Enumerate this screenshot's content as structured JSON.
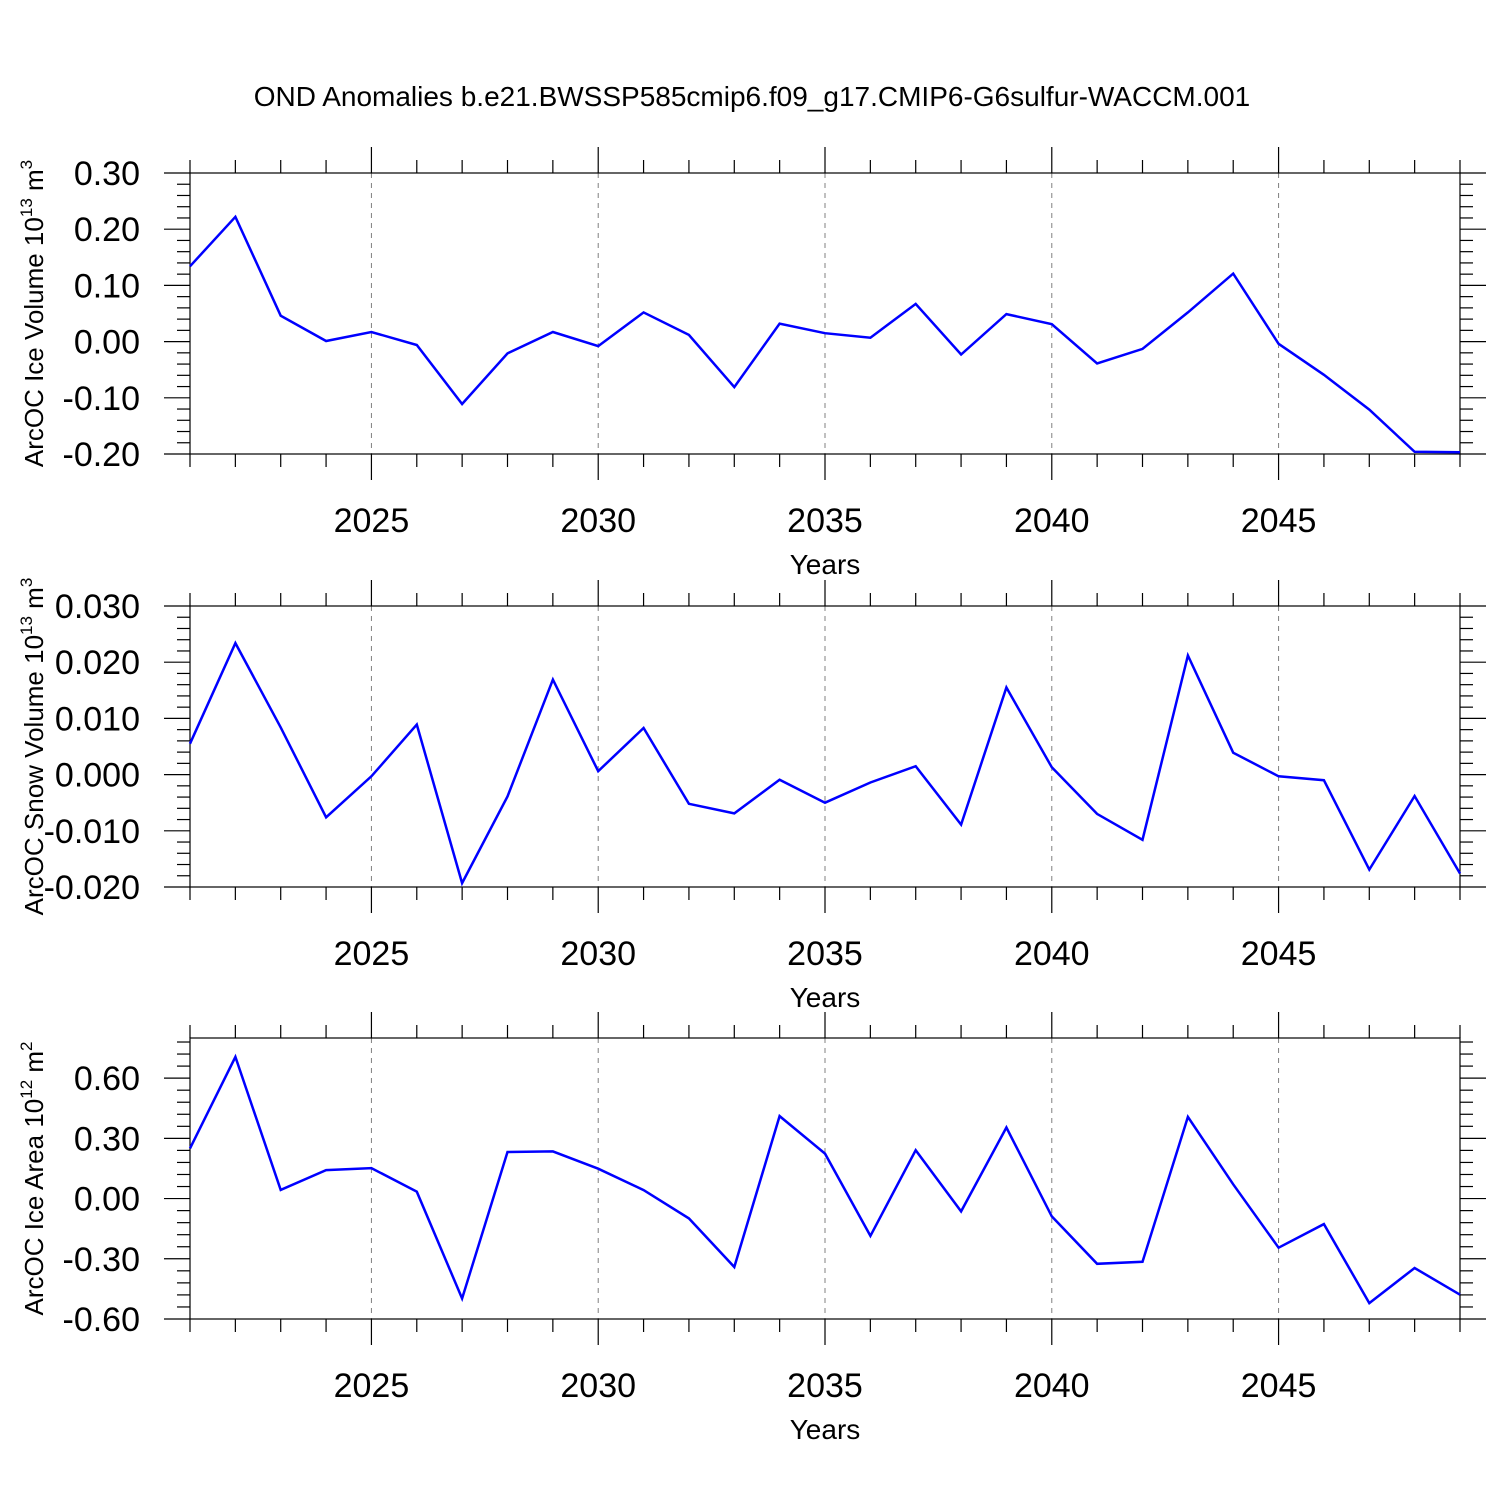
{
  "title": "OND Anomalies b.e21.BWSSP585cmip6.f09_g17.CMIP6-G6sulfur-WACCM.001",
  "colors": {
    "line": "#0000ff",
    "axis": "#000000",
    "grid": "#808080"
  },
  "chart_data": [
    {
      "type": "line",
      "ylabel": "ArcOC Ice Volume 10",
      "ylabel_exp": "13",
      "ylabel_unit": " m",
      "ylabel_unit_exp": "3",
      "xlabel": "Years",
      "xlim": [
        2021,
        2049
      ],
      "ylim": [
        -0.2,
        0.3
      ],
      "yticks": [
        -0.2,
        -0.1,
        0.0,
        0.1,
        0.2,
        0.3
      ],
      "ytick_labels": [
        "-0.20",
        "-0.10",
        "0.00",
        "0.10",
        "0.20",
        "0.30"
      ],
      "xticks": [
        2025,
        2030,
        2035,
        2040,
        2045
      ],
      "xtick_labels": [
        "2025",
        "2030",
        "2035",
        "2040",
        "2045"
      ],
      "grid": "vertical dashed at major x ticks",
      "series": [
        {
          "x": [
            2021,
            2022,
            2023,
            2024,
            2025,
            2026,
            2027,
            2028,
            2029,
            2030,
            2031,
            2032,
            2033,
            2034,
            2035,
            2036,
            2037,
            2038,
            2039,
            2040,
            2041,
            2042,
            2043,
            2044,
            2045,
            2046,
            2047,
            2048,
            2049
          ],
          "values": [
            0.134,
            0.222,
            0.046,
            0.001,
            0.017,
            -0.006,
            -0.111,
            -0.021,
            0.017,
            -0.008,
            0.052,
            0.012,
            -0.081,
            0.032,
            0.015,
            0.007,
            0.067,
            -0.023,
            0.049,
            0.031,
            -0.039,
            -0.013,
            0.052,
            0.121,
            -0.004,
            -0.059,
            -0.121,
            -0.196,
            -0.197
          ]
        }
      ]
    },
    {
      "type": "line",
      "ylabel": "ArcOC Snow Volume 10",
      "ylabel_exp": "13",
      "ylabel_unit": " m",
      "ylabel_unit_exp": "3",
      "xlabel": "Years",
      "xlim": [
        2021,
        2049
      ],
      "ylim": [
        -0.02,
        0.03
      ],
      "yticks": [
        -0.02,
        -0.01,
        0.0,
        0.01,
        0.02,
        0.03
      ],
      "ytick_labels": [
        "-0.020",
        "-0.010",
        "0.000",
        "0.010",
        "0.020",
        "0.030"
      ],
      "xticks": [
        2025,
        2030,
        2035,
        2040,
        2045
      ],
      "xtick_labels": [
        "2025",
        "2030",
        "2035",
        "2040",
        "2045"
      ],
      "grid": "vertical dashed at major x ticks",
      "series": [
        {
          "x": [
            2021,
            2022,
            2023,
            2024,
            2025,
            2026,
            2027,
            2028,
            2029,
            2030,
            2031,
            2032,
            2033,
            2034,
            2035,
            2036,
            2037,
            2038,
            2039,
            2040,
            2041,
            2042,
            2043,
            2044,
            2045,
            2046,
            2047,
            2048,
            2049
          ],
          "values": [
            0.0055,
            0.0234,
            0.0084,
            -0.0076,
            -0.0003,
            0.0089,
            -0.0193,
            -0.0039,
            0.0169,
            0.0006,
            0.0083,
            -0.0052,
            -0.0069,
            -0.0009,
            -0.005,
            -0.0014,
            0.0015,
            -0.0089,
            0.0155,
            0.0013,
            -0.007,
            -0.0116,
            0.0212,
            0.0039,
            -0.0003,
            -0.001,
            -0.0169,
            -0.0038,
            -0.0176
          ]
        }
      ]
    },
    {
      "type": "line",
      "ylabel": "ArcOC Ice Area 10",
      "ylabel_exp": "12",
      "ylabel_unit": " m",
      "ylabel_unit_exp": "2",
      "xlabel": "Years",
      "xlim": [
        2021,
        2049
      ],
      "ylim": [
        -0.6,
        0.8
      ],
      "yticks": [
        -0.6,
        -0.3,
        0.0,
        0.3,
        0.6
      ],
      "ytick_labels": [
        "-0.60",
        "-0.30",
        "0.00",
        "0.30",
        "0.60"
      ],
      "xticks": [
        2025,
        2030,
        2035,
        2040,
        2045
      ],
      "xtick_labels": [
        "2025",
        "2030",
        "2035",
        "2040",
        "2045"
      ],
      "grid": "vertical dashed at major x ticks",
      "series": [
        {
          "x": [
            2021,
            2022,
            2023,
            2024,
            2025,
            2026,
            2027,
            2028,
            2029,
            2030,
            2031,
            2032,
            2033,
            2034,
            2035,
            2036,
            2037,
            2038,
            2039,
            2040,
            2041,
            2042,
            2043,
            2044,
            2045,
            2046,
            2047,
            2048,
            2049
          ],
          "values": [
            0.25,
            0.706,
            0.043,
            0.142,
            0.152,
            0.034,
            -0.498,
            0.232,
            0.235,
            0.149,
            0.042,
            -0.099,
            -0.341,
            0.411,
            0.224,
            -0.186,
            0.241,
            -0.064,
            0.354,
            -0.089,
            -0.325,
            -0.315,
            0.407,
            0.071,
            -0.245,
            -0.127,
            -0.521,
            -0.346,
            -0.479
          ]
        }
      ]
    }
  ]
}
